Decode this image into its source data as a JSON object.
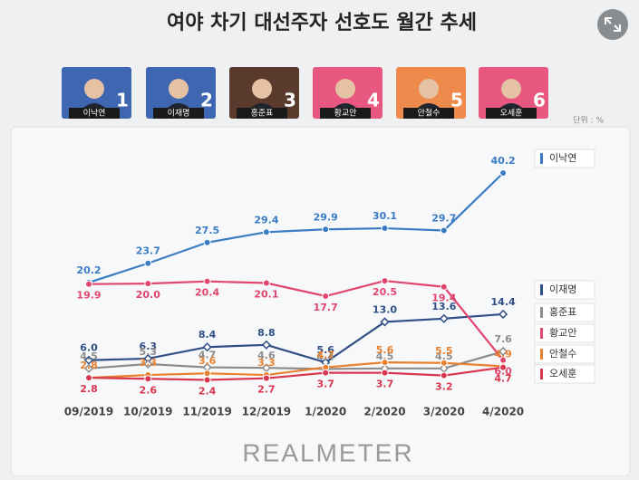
{
  "title": "여야 차기 대선주자 선호도 월간 추세",
  "unit": "단위 : %",
  "footer": "REALMETER",
  "candidates": [
    {
      "name": "이낙연",
      "number": 1,
      "color": "#3f66b0"
    },
    {
      "name": "이재명",
      "number": 2,
      "color": "#3f66b0"
    },
    {
      "name": "홍준표",
      "number": 3,
      "color": "#5a3a2c"
    },
    {
      "name": "황교안",
      "number": 4,
      "color": "#e8577f"
    },
    {
      "name": "안철수",
      "number": 5,
      "color": "#ee8a4c"
    },
    {
      "name": "오세훈",
      "number": 6,
      "color": "#e8577f"
    }
  ],
  "chart_data": {
    "type": "line",
    "categories": [
      "09/2019",
      "10/2019",
      "11/2019",
      "12/2019",
      "1/2020",
      "2/2020",
      "3/2020",
      "4/2020"
    ],
    "series": [
      {
        "name": "이낙연",
        "color": "#3a7cc4",
        "values": [
          20.2,
          23.7,
          27.5,
          29.4,
          29.9,
          30.1,
          29.7,
          40.2
        ],
        "value_labels": [
          "20.2",
          "23.7",
          "27.5",
          "29.4",
          "29.9",
          "30.1",
          "29.7",
          "40.2"
        ]
      },
      {
        "name": "이재명",
        "color": "#2f4f86",
        "values": [
          6.0,
          6.3,
          8.4,
          8.8,
          5.6,
          13.0,
          13.6,
          14.4
        ],
        "value_labels": [
          "6.0",
          "6.3",
          "8.4",
          "8.8",
          "5.6",
          "13.0",
          "13.6",
          "14.4"
        ]
      },
      {
        "name": "홍준표",
        "color": "#8c8c8c",
        "values": [
          4.5,
          5.3,
          4.7,
          4.6,
          4.4,
          4.5,
          4.5,
          7.6
        ],
        "value_labels": [
          "4.5",
          "5.3",
          "4.7",
          "4.6",
          "4.4",
          "4.5",
          "4.5",
          "7.6"
        ]
      },
      {
        "name": "황교안",
        "color": "#e0456e",
        "values": [
          19.9,
          20.0,
          20.4,
          20.1,
          17.7,
          20.5,
          19.4,
          6.0
        ],
        "value_labels": [
          "19.9",
          "20.0",
          "20.4",
          "20.1",
          "17.7",
          "20.5",
          "19.4",
          "6.0"
        ]
      },
      {
        "name": "안철수",
        "color": "#e8802e",
        "values": [
          2.8,
          3.3,
          3.6,
          3.3,
          4.7,
          5.6,
          5.5,
          4.9
        ],
        "value_labels": [
          "2.8",
          "3.3",
          "3.6",
          "3.3",
          "4.7",
          "5.6",
          "5.5",
          "4.9"
        ]
      },
      {
        "name": "오세훈",
        "color": "#d9364f",
        "values": [
          2.8,
          2.6,
          2.4,
          2.7,
          3.7,
          3.7,
          3.2,
          4.7
        ],
        "value_labels": [
          "2.8",
          "2.6",
          "2.4",
          "2.7",
          "3.7",
          "3.7",
          "3.2",
          "4.7"
        ]
      }
    ]
  }
}
